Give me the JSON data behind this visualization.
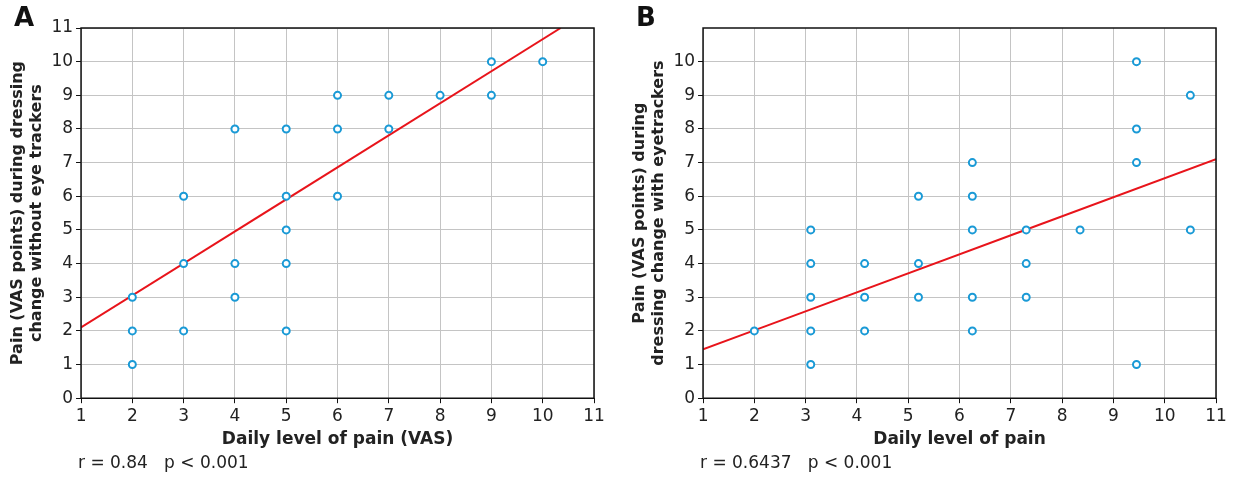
{
  "chart_data": [
    {
      "type": "scatter",
      "title": "A",
      "xlabel": "Daily level of pain (VAS)",
      "ylabel": "Pain (VAS points) during dressing change without eye trackers",
      "xlim": [
        1,
        11
      ],
      "ylim": [
        0,
        11
      ],
      "xticks": [
        1,
        2,
        3,
        4,
        5,
        6,
        7,
        8,
        9,
        10,
        11
      ],
      "yticks": [
        0,
        1,
        2,
        3,
        4,
        5,
        6,
        7,
        8,
        9,
        10,
        11
      ],
      "grid": true,
      "legend": false,
      "marker": "circle",
      "annotations": [
        "r = 0.84   p < 0.001"
      ],
      "series": [
        {
          "color": "#1a9ad6",
          "x": [
            2,
            2,
            2,
            3,
            3,
            3,
            4,
            4,
            4,
            5,
            5,
            5,
            5,
            5,
            6,
            6,
            6,
            7,
            7,
            8,
            9,
            9,
            10
          ],
          "values": [
            1,
            2,
            3,
            2,
            4,
            6,
            3,
            4,
            8,
            2,
            4,
            5,
            6,
            8,
            6,
            8,
            9,
            8,
            9,
            9,
            9,
            10,
            10
          ]
        },
        {
          "type": "line",
          "color": "#e8141b",
          "marker": "none",
          "x": [
            1,
            10.35
          ],
          "values": [
            2.1,
            11
          ]
        }
      ]
    },
    {
      "type": "scatter",
      "title": "B",
      "xlabel": "Daily level of pain",
      "ylabel": "Pain (VAS points) during dressing change with eyetrackers",
      "xlim": [
        1,
        11
      ],
      "ylim": [
        0,
        11
      ],
      "xticks": [
        1,
        2,
        3,
        4,
        5,
        6,
        7,
        8,
        9,
        10,
        11
      ],
      "yticks": [
        0,
        1,
        2,
        3,
        4,
        5,
        6,
        7,
        8,
        9,
        10
      ],
      "grid": true,
      "legend": false,
      "marker": "circle",
      "annotations": [
        "r = 0.6437   p < 0.001"
      ],
      "series": [
        {
          "color": "#1a9ad6",
          "x": [
            2,
            3.1,
            3.1,
            3.1,
            3.1,
            3.1,
            4.15,
            4.15,
            4.15,
            5.2,
            5.2,
            5.2,
            6.25,
            6.25,
            6.25,
            6.25,
            6.25,
            7.3,
            7.3,
            7.3,
            8.35,
            9.45,
            9.45,
            9.45,
            9.45,
            10.5,
            10.5
          ],
          "values": [
            2,
            1,
            2,
            3,
            4,
            5,
            2,
            3,
            4,
            3,
            4,
            6,
            2,
            3,
            5,
            6,
            7,
            3,
            4,
            5,
            5,
            1,
            7,
            8,
            10,
            5,
            9
          ]
        },
        {
          "type": "line",
          "color": "#e8141b",
          "marker": "none",
          "x": [
            1,
            11
          ],
          "values": [
            1.45,
            7.1
          ]
        }
      ]
    }
  ]
}
